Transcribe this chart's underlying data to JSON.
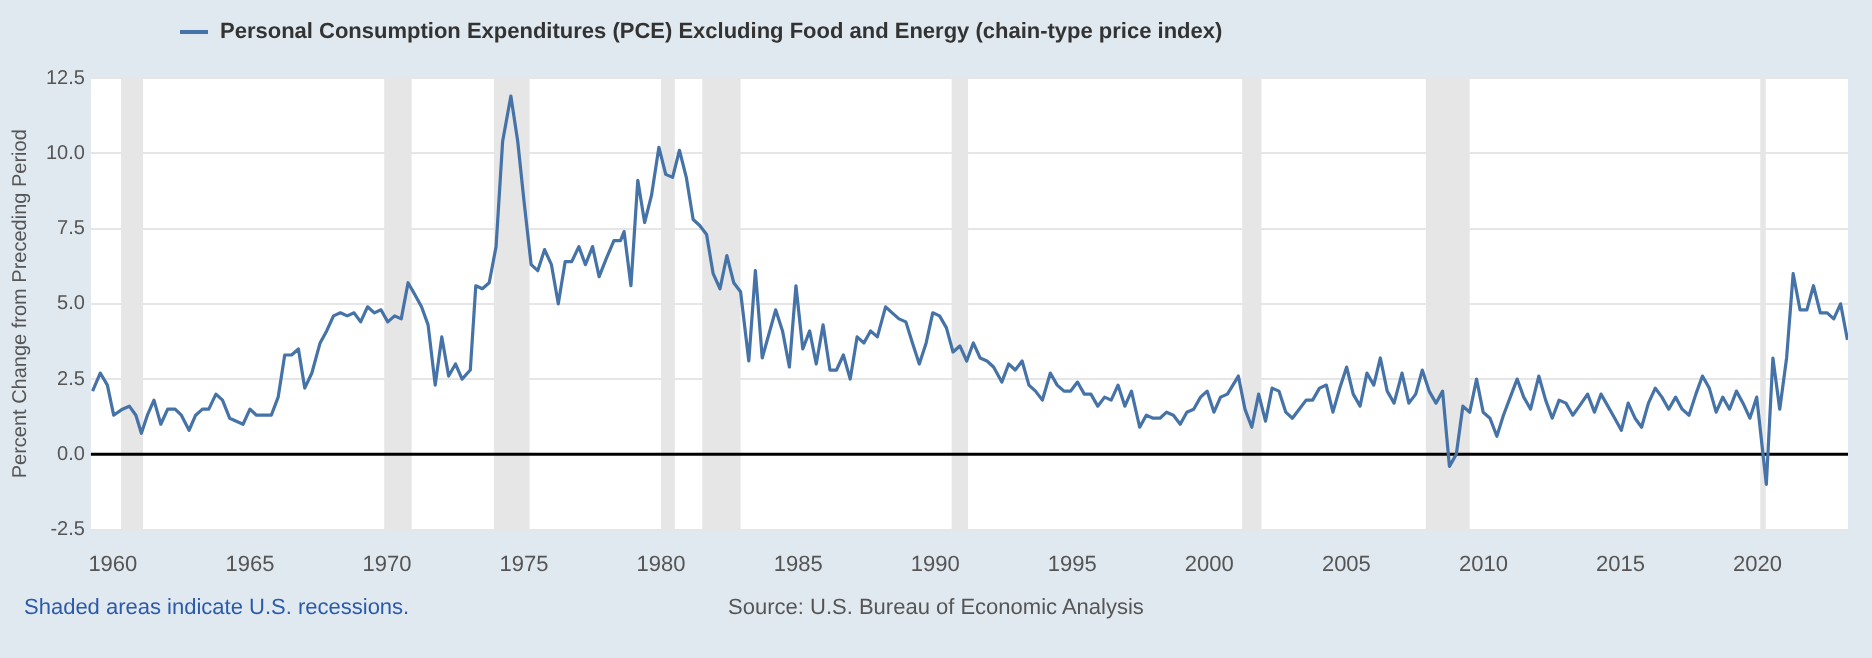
{
  "chart_data": {
    "type": "line",
    "ylabel": "Percent Change from Preceding Period",
    "legend": "top left",
    "grid": "y",
    "marker": "none",
    "line_style": "solid",
    "annotations": [
      "Shaded areas indicate U.S. recessions.",
      "Source: U.S. Bureau of Economic Analysis"
    ],
    "xlim": [
      1959.2,
      2023.3
    ],
    "xticks": [
      1960,
      1965,
      1970,
      1975,
      1980,
      1985,
      1990,
      1995,
      2000,
      2005,
      2010,
      2015,
      2020
    ],
    "ylim": [
      -2.5,
      12.5
    ],
    "yticks": [
      {
        "value": -2.5,
        "label": "-2.5"
      },
      {
        "value": 0,
        "label": "0.0"
      },
      {
        "value": 2.5,
        "label": "2.5"
      },
      {
        "value": 5,
        "label": "5.0"
      },
      {
        "value": 7.5,
        "label": "7.5"
      },
      {
        "value": 10,
        "label": "10.0"
      },
      {
        "value": 12.5,
        "label": "12.5"
      }
    ],
    "bands": [
      {
        "axis": "x",
        "from": 1960.3,
        "to": 1961.1,
        "color": "#e6e6e6"
      },
      {
        "axis": "x",
        "from": 1969.9,
        "to": 1970.9,
        "color": "#e6e6e6"
      },
      {
        "axis": "x",
        "from": 1973.9,
        "to": 1975.2,
        "color": "#e6e6e6"
      },
      {
        "axis": "x",
        "from": 1980.0,
        "to": 1980.5,
        "color": "#e6e6e6"
      },
      {
        "axis": "x",
        "from": 1981.5,
        "to": 1982.9,
        "color": "#e6e6e6"
      },
      {
        "axis": "x",
        "from": 1990.6,
        "to": 1991.2,
        "color": "#e6e6e6"
      },
      {
        "axis": "x",
        "from": 2001.2,
        "to": 2001.9,
        "color": "#e6e6e6"
      },
      {
        "axis": "x",
        "from": 2007.9,
        "to": 2009.5,
        "color": "#e6e6e6"
      },
      {
        "axis": "x",
        "from": 2020.1,
        "to": 2020.3,
        "color": "#e6e6e6"
      }
    ],
    "ref_lines": [
      {
        "axis": "y",
        "value": 0,
        "color": "#000000"
      }
    ],
    "series": [
      {
        "name": "Personal Consumption Expenditures (PCE) Excluding Food and Energy (chain-type price index)",
        "color": "#4572a7",
        "x": [
          1959.26,
          1959.54,
          1959.8,
          1960.03,
          1960.35,
          1960.6,
          1960.84,
          1961.04,
          1961.26,
          1961.5,
          1961.75,
          1962.0,
          1962.27,
          1962.5,
          1962.78,
          1963.02,
          1963.27,
          1963.5,
          1963.76,
          1964.0,
          1964.26,
          1964.75,
          1965.0,
          1965.24,
          1965.78,
          1966.03,
          1966.27,
          1966.52,
          1966.77,
          1967.0,
          1967.26,
          1967.56,
          1967.8,
          1968.05,
          1968.3,
          1968.55,
          1968.8,
          1969.04,
          1969.29,
          1969.54,
          1969.78,
          1970.03,
          1970.28,
          1970.52,
          1970.77,
          1971.02,
          1971.26,
          1971.5,
          1971.76,
          1972.0,
          1972.25,
          1972.5,
          1972.74,
          1973.04,
          1973.24,
          1973.48,
          1973.73,
          1973.98,
          1974.22,
          1974.52,
          1974.77,
          1975.0,
          1975.26,
          1975.5,
          1975.75,
          1976.0,
          1976.25,
          1976.5,
          1976.74,
          1977.0,
          1977.24,
          1977.5,
          1977.74,
          1978.0,
          1978.28,
          1978.52,
          1978.65,
          1978.9,
          1979.15,
          1979.4,
          1979.65,
          1979.92,
          1980.17,
          1980.42,
          1980.67,
          1980.92,
          1981.17,
          1981.41,
          1981.66,
          1981.9,
          1982.15,
          1982.4,
          1982.65,
          1982.9,
          1983.2,
          1983.44,
          1983.69,
          1984.18,
          1984.43,
          1984.68,
          1984.92,
          1985.17,
          1985.42,
          1985.66,
          1985.91,
          1986.16,
          1986.4,
          1986.65,
          1986.9,
          1987.15,
          1987.4,
          1987.64,
          1987.89,
          1988.19,
          1988.43,
          1988.68,
          1988.93,
          1989.17,
          1989.42,
          1989.67,
          1989.91,
          1990.16,
          1990.41,
          1990.65,
          1990.9,
          1991.15,
          1991.39,
          1991.64,
          1991.89,
          1992.13,
          1992.43,
          1992.68,
          1992.92,
          1993.17,
          1993.42,
          1993.66,
          1993.91,
          1994.2,
          1994.45,
          1994.7,
          1994.94,
          1995.19,
          1995.44,
          1995.68,
          1995.93,
          1996.18,
          1996.42,
          1996.67,
          1996.92,
          1997.16,
          1997.46,
          1997.7,
          1997.95,
          1998.2,
          1998.44,
          1998.69,
          1998.94,
          1999.18,
          1999.43,
          1999.68,
          1999.92,
          2000.17,
          2000.41,
          2000.66,
          2001.06,
          2001.3,
          2001.55,
          2001.8,
          2002.05,
          2002.29,
          2002.54,
          2002.79,
          2003.03,
          2003.28,
          2003.53,
          2003.77,
          2004.02,
          2004.27,
          2004.51,
          2004.76,
          2005.01,
          2005.25,
          2005.5,
          2005.75,
          2006.0,
          2006.24,
          2006.49,
          2006.74,
          2007.03,
          2007.28,
          2007.53,
          2007.77,
          2008.02,
          2008.27,
          2008.51,
          2008.76,
          2009.01,
          2009.25,
          2009.5,
          2009.75,
          2009.99,
          2010.24,
          2010.49,
          2010.73,
          2010.98,
          2011.23,
          2011.47,
          2011.72,
          2012.02,
          2012.27,
          2012.51,
          2012.76,
          2013.01,
          2013.26,
          2013.5,
          2013.8,
          2014.05,
          2014.29,
          2014.54,
          2014.79,
          2015.03,
          2015.28,
          2015.53,
          2015.77,
          2016.02,
          2016.27,
          2016.51,
          2016.76,
          2017.01,
          2017.25,
          2017.5,
          2017.75,
          2017.99,
          2018.24,
          2018.49,
          2018.73,
          2018.98,
          2019.23,
          2019.47,
          2019.72,
          2019.97,
          2020.32,
          2020.56,
          2020.81,
          2021.06,
          2021.3,
          2021.55,
          2021.8,
          2022.04,
          2022.29,
          2022.54,
          2022.78,
          2023.03,
          2023.28
        ],
        "values": [
          2.1,
          2.7,
          2.3,
          1.3,
          1.5,
          1.6,
          1.3,
          0.7,
          1.3,
          1.8,
          1.0,
          1.5,
          1.5,
          1.3,
          0.8,
          1.3,
          1.5,
          1.5,
          2.0,
          1.8,
          1.2,
          1.0,
          1.5,
          1.3,
          1.3,
          1.9,
          3.3,
          3.3,
          3.5,
          2.2,
          2.7,
          3.7,
          4.1,
          4.6,
          4.7,
          4.6,
          4.7,
          4.4,
          4.9,
          4.7,
          4.8,
          4.4,
          4.6,
          4.5,
          5.7,
          5.3,
          4.9,
          4.3,
          2.3,
          3.9,
          2.6,
          3.0,
          2.5,
          2.8,
          5.6,
          5.5,
          5.7,
          6.9,
          10.4,
          11.9,
          10.4,
          8.4,
          6.3,
          6.1,
          6.8,
          6.3,
          5.0,
          6.4,
          6.4,
          6.9,
          6.3,
          6.9,
          5.9,
          6.5,
          7.1,
          7.1,
          7.4,
          5.6,
          9.1,
          7.7,
          8.6,
          10.2,
          9.3,
          9.2,
          10.1,
          9.2,
          7.8,
          7.6,
          7.3,
          6.0,
          5.5,
          6.6,
          5.7,
          5.4,
          3.1,
          6.1,
          3.2,
          4.8,
          4.1,
          2.9,
          5.6,
          3.5,
          4.1,
          3.0,
          4.3,
          2.8,
          2.8,
          3.3,
          2.5,
          3.9,
          3.7,
          4.1,
          3.9,
          4.9,
          4.7,
          4.5,
          4.4,
          3.7,
          3.0,
          3.7,
          4.7,
          4.6,
          4.2,
          3.4,
          3.6,
          3.1,
          3.7,
          3.2,
          3.1,
          2.9,
          2.4,
          3.0,
          2.8,
          3.1,
          2.3,
          2.1,
          1.8,
          2.7,
          2.3,
          2.1,
          2.1,
          2.4,
          2.0,
          2.0,
          1.6,
          1.9,
          1.8,
          2.3,
          1.6,
          2.1,
          0.9,
          1.3,
          1.2,
          1.2,
          1.4,
          1.3,
          1.0,
          1.4,
          1.5,
          1.9,
          2.1,
          1.4,
          1.9,
          2.0,
          2.6,
          1.5,
          0.9,
          2.0,
          1.1,
          2.2,
          2.1,
          1.4,
          1.2,
          1.5,
          1.8,
          1.8,
          2.2,
          2.3,
          1.4,
          2.2,
          2.9,
          2.0,
          1.6,
          2.7,
          2.3,
          3.2,
          2.1,
          1.7,
          2.7,
          1.7,
          2.0,
          2.8,
          2.1,
          1.7,
          2.1,
          -0.4,
          0.0,
          1.6,
          1.4,
          2.5,
          1.4,
          1.2,
          0.6,
          1.3,
          1.9,
          2.5,
          1.9,
          1.5,
          2.6,
          1.8,
          1.2,
          1.8,
          1.7,
          1.3,
          1.6,
          2.0,
          1.4,
          2.0,
          1.6,
          1.2,
          0.8,
          1.7,
          1.2,
          0.9,
          1.7,
          2.2,
          1.9,
          1.5,
          1.9,
          1.5,
          1.3,
          2.0,
          2.6,
          2.2,
          1.4,
          1.9,
          1.5,
          2.1,
          1.7,
          1.2,
          1.9,
          -1.0,
          3.2,
          1.5,
          3.2,
          6.0,
          4.8,
          4.8,
          5.6,
          4.7,
          4.7,
          4.5,
          5.0,
          3.8
        ]
      }
    ]
  }
}
